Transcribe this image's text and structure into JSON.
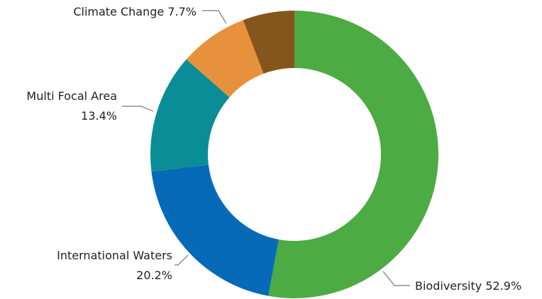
{
  "chart_data": {
    "type": "donut",
    "categories": [
      "Biodiversity",
      "International Waters",
      "Multi Focal Area",
      "Climate Change",
      null
    ],
    "values": [
      52.9,
      20.2,
      13.4,
      7.7,
      5.8
    ],
    "value_labels": [
      "52.9%",
      "20.2%",
      "13.4%",
      "7.7%",
      null
    ],
    "colors": [
      "#4dab43",
      "#066ab8",
      "#0a8d96",
      "#e8913d",
      "#85561c"
    ]
  }
}
